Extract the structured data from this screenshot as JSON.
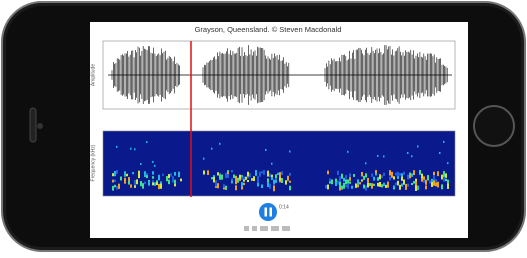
{
  "title": "Grayson, Queensland. © Steven Macdonald",
  "waveform": {
    "y_label": "Amplitude"
  },
  "spectrogram": {
    "y_label": "Frequency (kHz)"
  },
  "player": {
    "time": "0:14"
  }
}
